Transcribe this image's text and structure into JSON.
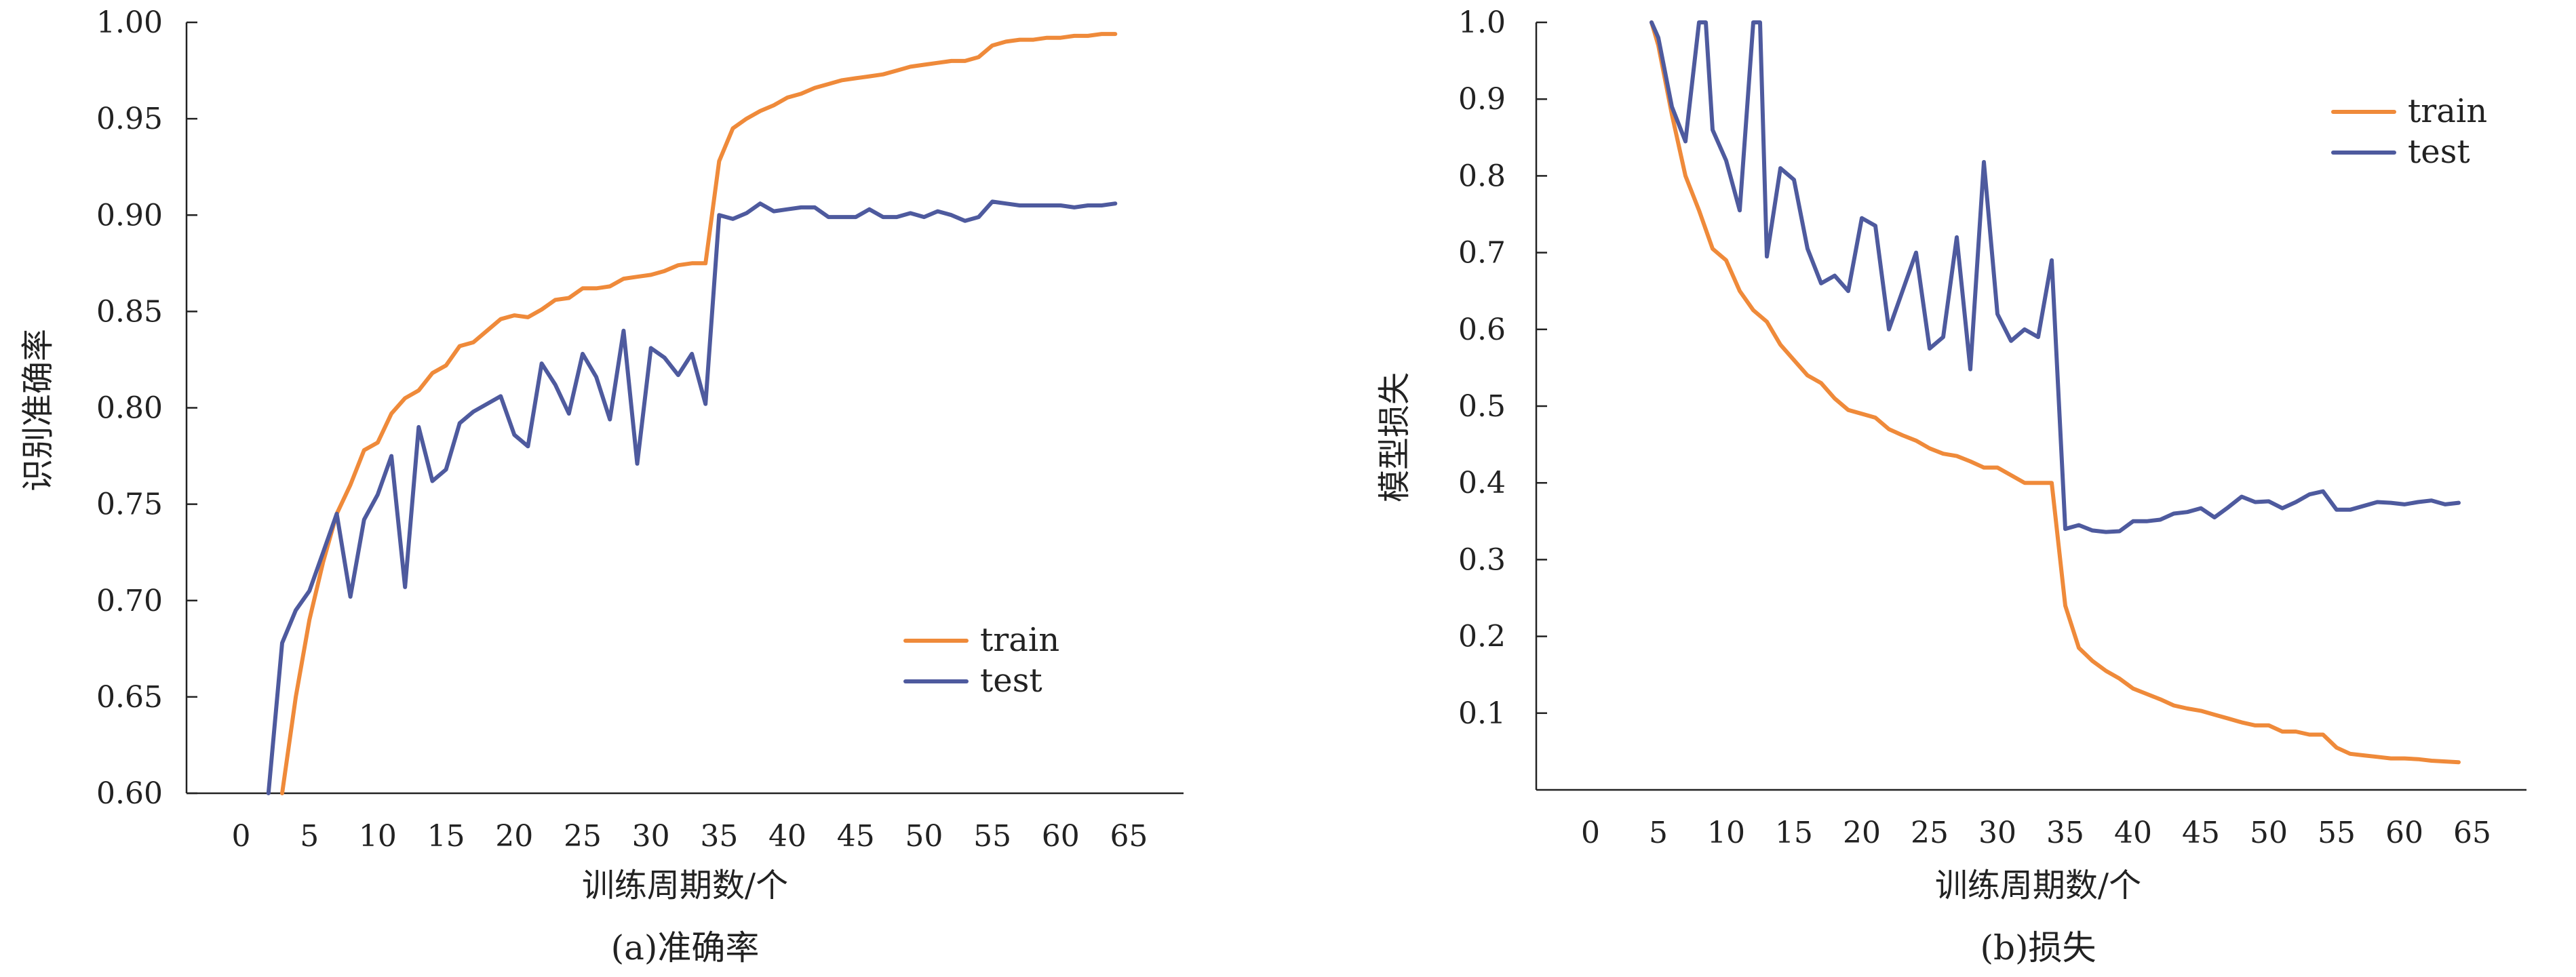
{
  "colors": {
    "train": "#EF8A3A",
    "test": "#4E5A9E"
  },
  "chart_data": [
    {
      "type": "line",
      "caption": "(a)准确率",
      "xlabel": "训练周期数/个",
      "ylabel": "识别准确率",
      "xlim": [
        -4,
        69
      ],
      "ylim": [
        0.6,
        1.0
      ],
      "xticks": [
        "0",
        "5",
        "10",
        "15",
        "20",
        "25",
        "30",
        "35",
        "40",
        "45",
        "50",
        "55",
        "60",
        "65"
      ],
      "yticks": [
        "0.60",
        "0.65",
        "0.70",
        "0.75",
        "0.80",
        "0.85",
        "0.90",
        "0.95",
        "1.00"
      ],
      "legend": {
        "position": "lower-right",
        "labels": [
          "train",
          "test"
        ]
      },
      "series": [
        {
          "name": "train",
          "color_key": "train",
          "x": [
            3,
            4,
            5,
            6,
            7,
            8,
            9,
            10,
            11,
            12,
            13,
            14,
            15,
            16,
            17,
            18,
            19,
            20,
            21,
            22,
            23,
            24,
            25,
            26,
            27,
            28,
            29,
            30,
            31,
            32,
            33,
            34,
            35,
            36,
            37,
            38,
            39,
            40,
            41,
            42,
            43,
            44,
            45,
            46,
            47,
            48,
            49,
            50,
            51,
            52,
            53,
            54,
            55,
            56,
            57,
            58,
            59,
            60,
            61,
            62,
            63,
            64
          ],
          "y": [
            0.6,
            0.65,
            0.69,
            0.72,
            0.745,
            0.76,
            0.778,
            0.782,
            0.797,
            0.805,
            0.809,
            0.818,
            0.822,
            0.832,
            0.834,
            0.84,
            0.846,
            0.848,
            0.847,
            0.851,
            0.856,
            0.857,
            0.862,
            0.862,
            0.863,
            0.867,
            0.868,
            0.869,
            0.871,
            0.874,
            0.875,
            0.875,
            0.928,
            0.945,
            0.95,
            0.954,
            0.957,
            0.961,
            0.963,
            0.966,
            0.968,
            0.97,
            0.971,
            0.972,
            0.973,
            0.975,
            0.977,
            0.978,
            0.979,
            0.98,
            0.98,
            0.982,
            0.988,
            0.99,
            0.991,
            0.991,
            0.992,
            0.992,
            0.993,
            0.993,
            0.994,
            0.994
          ]
        },
        {
          "name": "test",
          "color_key": "test",
          "x": [
            2,
            3,
            4,
            5,
            6,
            7,
            8,
            9,
            10,
            11,
            12,
            13,
            14,
            15,
            16,
            17,
            18,
            19,
            20,
            21,
            22,
            23,
            24,
            25,
            26,
            27,
            28,
            29,
            30,
            31,
            32,
            33,
            34,
            35,
            36,
            37,
            38,
            39,
            40,
            41,
            42,
            43,
            44,
            45,
            46,
            47,
            48,
            49,
            50,
            51,
            52,
            53,
            54,
            55,
            56,
            57,
            58,
            59,
            60,
            61,
            62,
            63,
            64
          ],
          "y": [
            0.6,
            0.678,
            0.695,
            0.705,
            0.725,
            0.745,
            0.702,
            0.742,
            0.755,
            0.775,
            0.707,
            0.79,
            0.762,
            0.768,
            0.792,
            0.798,
            0.802,
            0.806,
            0.786,
            0.78,
            0.823,
            0.812,
            0.797,
            0.828,
            0.816,
            0.794,
            0.84,
            0.771,
            0.831,
            0.826,
            0.817,
            0.828,
            0.802,
            0.9,
            0.898,
            0.901,
            0.906,
            0.902,
            0.903,
            0.904,
            0.904,
            0.899,
            0.899,
            0.899,
            0.903,
            0.899,
            0.899,
            0.901,
            0.899,
            0.902,
            0.9,
            0.897,
            0.899,
            0.907,
            0.906,
            0.905,
            0.905,
            0.905,
            0.905,
            0.904,
            0.905,
            0.905,
            0.906
          ]
        }
      ]
    },
    {
      "type": "line",
      "caption": "(b)损失",
      "xlabel": "训练周期数/个",
      "ylabel": "模型损失",
      "xlim": [
        -4,
        69
      ],
      "ylim": [
        0,
        1.0
      ],
      "xticks": [
        "0",
        "5",
        "10",
        "15",
        "20",
        "25",
        "30",
        "35",
        "40",
        "45",
        "50",
        "55",
        "60",
        "65"
      ],
      "yticks": [
        "0.1",
        "0.2",
        "0.3",
        "0.4",
        "0.5",
        "0.6",
        "0.7",
        "0.8",
        "0.9",
        "1.0"
      ],
      "legend": {
        "position": "upper-right",
        "labels": [
          "train",
          "test"
        ]
      },
      "series": [
        {
          "name": "train",
          "color_key": "train",
          "x": [
            4.5,
            5,
            6,
            7,
            8,
            9,
            10,
            11,
            12,
            13,
            14,
            15,
            16,
            17,
            18,
            19,
            20,
            21,
            22,
            23,
            24,
            25,
            26,
            27,
            28,
            29,
            30,
            31,
            32,
            33,
            34,
            35,
            36,
            37,
            38,
            39,
            40,
            41,
            42,
            43,
            44,
            45,
            46,
            47,
            48,
            49,
            50,
            51,
            52,
            53,
            54,
            55,
            56,
            57,
            58,
            59,
            60,
            61,
            62,
            63,
            64
          ],
          "y": [
            1.0,
            0.97,
            0.88,
            0.8,
            0.755,
            0.705,
            0.69,
            0.65,
            0.625,
            0.61,
            0.58,
            0.56,
            0.54,
            0.53,
            0.51,
            0.495,
            0.49,
            0.485,
            0.47,
            0.462,
            0.455,
            0.445,
            0.438,
            0.435,
            0.428,
            0.42,
            0.42,
            0.41,
            0.4,
            0.4,
            0.4,
            0.24,
            0.185,
            0.168,
            0.155,
            0.145,
            0.132,
            0.125,
            0.118,
            0.11,
            0.106,
            0.103,
            0.098,
            0.093,
            0.088,
            0.084,
            0.084,
            0.076,
            0.076,
            0.072,
            0.072,
            0.055,
            0.047,
            0.045,
            0.043,
            0.041,
            0.041,
            0.04,
            0.038,
            0.037,
            0.036
          ]
        },
        {
          "name": "test",
          "color_key": "test",
          "x": [
            4.5,
            5,
            6,
            7,
            8,
            8.5,
            9,
            10,
            11,
            12,
            12.5,
            13,
            14,
            15,
            16,
            17,
            18,
            19,
            20,
            21,
            22,
            23,
            24,
            25,
            26,
            27,
            28,
            29,
            30,
            31,
            32,
            33,
            34,
            35,
            36,
            37,
            38,
            39,
            40,
            41,
            42,
            43,
            44,
            45,
            46,
            47,
            48,
            49,
            50,
            51,
            52,
            53,
            54,
            55,
            56,
            57,
            58,
            59,
            60,
            61,
            62,
            63,
            64
          ],
          "y": [
            1.0,
            0.98,
            0.89,
            0.845,
            1.0,
            1.0,
            0.86,
            0.82,
            0.755,
            1.0,
            1.0,
            0.695,
            0.81,
            0.795,
            0.705,
            0.66,
            0.67,
            0.65,
            0.745,
            0.735,
            0.6,
            0.65,
            0.7,
            0.575,
            0.59,
            0.72,
            0.548,
            0.818,
            0.62,
            0.585,
            0.6,
            0.59,
            0.69,
            0.34,
            0.345,
            0.338,
            0.336,
            0.337,
            0.35,
            0.35,
            0.352,
            0.36,
            0.362,
            0.367,
            0.355,
            0.368,
            0.382,
            0.375,
            0.376,
            0.367,
            0.375,
            0.385,
            0.389,
            0.365,
            0.365,
            0.37,
            0.375,
            0.374,
            0.372,
            0.375,
            0.377,
            0.372,
            0.374
          ]
        }
      ]
    }
  ]
}
